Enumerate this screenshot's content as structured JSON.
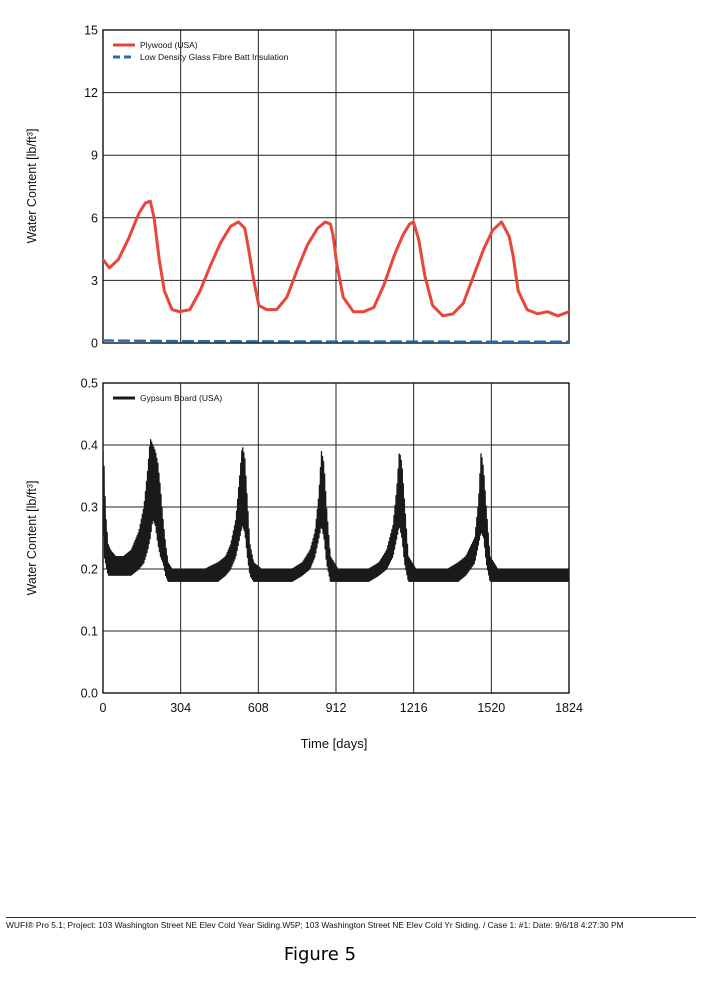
{
  "chart_data": [
    {
      "type": "line",
      "title": "",
      "xlabel": "",
      "ylabel": "Water Content [lb/ft³]",
      "xlim": [
        0,
        1824
      ],
      "ylim": [
        0,
        15
      ],
      "yticks": [
        0,
        3,
        6,
        9,
        12,
        15
      ],
      "xticks": [
        0,
        304,
        608,
        912,
        1216,
        1520,
        1824
      ],
      "show_xtick_labels": false,
      "grid": true,
      "legend": "top-left",
      "series": [
        {
          "name": "Plywood (USA)",
          "color": "#e8463a",
          "line_style": "solid",
          "x": [
            0,
            25,
            60,
            100,
            140,
            165,
            185,
            200,
            220,
            240,
            270,
            300,
            340,
            380,
            420,
            460,
            500,
            530,
            555,
            570,
            590,
            610,
            640,
            680,
            720,
            760,
            800,
            840,
            870,
            890,
            900,
            915,
            940,
            980,
            1020,
            1060,
            1100,
            1140,
            1175,
            1200,
            1215,
            1235,
            1260,
            1290,
            1330,
            1370,
            1410,
            1450,
            1490,
            1525,
            1560,
            1590,
            1605,
            1625,
            1660,
            1700,
            1740,
            1780,
            1824
          ],
          "y": [
            4.0,
            3.6,
            4.0,
            5.0,
            6.2,
            6.7,
            6.8,
            6.0,
            4.0,
            2.5,
            1.6,
            1.5,
            1.6,
            2.5,
            3.7,
            4.8,
            5.6,
            5.8,
            5.5,
            4.5,
            3.0,
            1.8,
            1.6,
            1.6,
            2.2,
            3.5,
            4.7,
            5.5,
            5.8,
            5.7,
            5.2,
            3.8,
            2.2,
            1.5,
            1.5,
            1.7,
            2.8,
            4.2,
            5.2,
            5.7,
            5.8,
            5.0,
            3.2,
            1.8,
            1.3,
            1.4,
            1.9,
            3.2,
            4.5,
            5.4,
            5.8,
            5.1,
            4.2,
            2.5,
            1.6,
            1.4,
            1.5,
            1.3,
            1.5
          ]
        },
        {
          "name": "Low Density Glass Fibre Batt Insulation",
          "color": "#2a6aa8",
          "line_style": "dashed",
          "x": [
            0,
            304,
            608,
            912,
            1216,
            1520,
            1824
          ],
          "y": [
            0.12,
            0.09,
            0.08,
            0.07,
            0.07,
            0.06,
            0.06
          ]
        }
      ]
    },
    {
      "type": "line",
      "title": "",
      "xlabel": "Time [days]",
      "ylabel": "Water Content [lb/ft³]",
      "xlim": [
        0,
        1824
      ],
      "ylim": [
        0,
        0.5
      ],
      "yticks": [
        0.0,
        0.1,
        0.2,
        0.3,
        0.4,
        0.5
      ],
      "ytick_labels": [
        "0.0",
        "0.1",
        "0.2",
        "0.3",
        "0.4",
        "0.5"
      ],
      "xticks": [
        0,
        304,
        608,
        912,
        1216,
        1520,
        1824
      ],
      "grid": true,
      "legend": "top-left",
      "series": [
        {
          "name": "Gypsum Board (USA)",
          "color": "#1a1a1a",
          "line_style": "solid",
          "fill_band": true,
          "x": [
            0,
            5,
            10,
            20,
            30,
            50,
            80,
            110,
            140,
            160,
            175,
            185,
            195,
            205,
            215,
            225,
            235,
            245,
            255,
            270,
            300,
            350,
            400,
            450,
            480,
            500,
            520,
            535,
            545,
            555,
            565,
            575,
            590,
            620,
            680,
            740,
            780,
            810,
            830,
            845,
            855,
            865,
            875,
            890,
            920,
            980,
            1040,
            1080,
            1110,
            1135,
            1150,
            1160,
            1170,
            1180,
            1195,
            1225,
            1290,
            1350,
            1390,
            1420,
            1455,
            1470,
            1480,
            1490,
            1500,
            1515,
            1545,
            1600,
            1660,
            1720,
            1780,
            1824
          ],
          "y_low": [
            0.28,
            0.22,
            0.21,
            0.19,
            0.19,
            0.19,
            0.19,
            0.19,
            0.2,
            0.21,
            0.23,
            0.25,
            0.28,
            0.27,
            0.24,
            0.22,
            0.21,
            0.19,
            0.18,
            0.18,
            0.18,
            0.18,
            0.18,
            0.18,
            0.19,
            0.2,
            0.22,
            0.25,
            0.27,
            0.26,
            0.22,
            0.19,
            0.18,
            0.18,
            0.18,
            0.18,
            0.19,
            0.2,
            0.22,
            0.25,
            0.27,
            0.25,
            0.21,
            0.18,
            0.18,
            0.18,
            0.18,
            0.19,
            0.2,
            0.22,
            0.25,
            0.27,
            0.25,
            0.21,
            0.18,
            0.18,
            0.18,
            0.18,
            0.18,
            0.19,
            0.21,
            0.24,
            0.26,
            0.25,
            0.21,
            0.18,
            0.18,
            0.18,
            0.18,
            0.18,
            0.18,
            0.18
          ],
          "y_high": [
            0.39,
            0.36,
            0.29,
            0.24,
            0.23,
            0.22,
            0.22,
            0.23,
            0.26,
            0.3,
            0.36,
            0.41,
            0.4,
            0.39,
            0.37,
            0.33,
            0.28,
            0.24,
            0.21,
            0.2,
            0.2,
            0.2,
            0.2,
            0.21,
            0.22,
            0.24,
            0.28,
            0.35,
            0.4,
            0.38,
            0.31,
            0.24,
            0.21,
            0.2,
            0.2,
            0.2,
            0.21,
            0.23,
            0.26,
            0.32,
            0.39,
            0.37,
            0.3,
            0.22,
            0.2,
            0.2,
            0.2,
            0.21,
            0.23,
            0.27,
            0.33,
            0.39,
            0.37,
            0.31,
            0.22,
            0.2,
            0.2,
            0.2,
            0.21,
            0.22,
            0.25,
            0.31,
            0.39,
            0.36,
            0.3,
            0.22,
            0.2,
            0.2,
            0.2,
            0.2,
            0.2,
            0.2
          ]
        }
      ]
    }
  ],
  "footer": {
    "text": "WUFI® Pro 5.1; Project: 103 Washington Street NE Elev Cold Year Siding.W5P; 103 Washington Street NE Elev Cold Yr Siding. / Case 1: #1: Date: 9/6/18 4:27:30 PM"
  },
  "caption": "Figure 5"
}
